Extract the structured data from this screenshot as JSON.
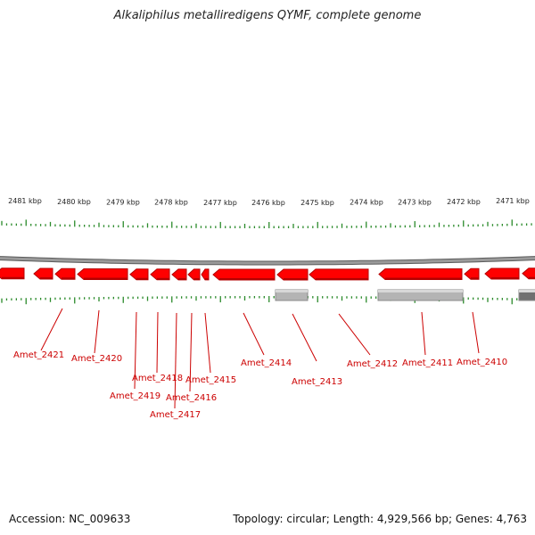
{
  "title": "Alkaliphilus metalliredigens QYMF, complete genome",
  "footer": {
    "accession": "Accession: NC_009633",
    "stats": "Topology: circular; Length: 4,929,566 bp; Genes: 4,763"
  },
  "colors": {
    "gene_forward": "#ff0000",
    "gene_reverse": "#ff0000",
    "gene_shadow": "#b40000",
    "gray_feature": "#b4b4b4",
    "dark_feature": "#707070",
    "backbone": "#808080",
    "tick": "#2a8a2a",
    "label": "#cc0000",
    "scale_text": "#222222"
  },
  "scale_labels": [
    "2481 kbp",
    "2480 kbp",
    "2479 kbp",
    "2478 kbp",
    "2477 kbp",
    "2476 kbp",
    "2475 kbp",
    "2474 kbp",
    "2473 kbp",
    "2472 kbp",
    "2471 kbp"
  ],
  "gene_labels": [
    "Amet_2421",
    "Amet_2420",
    "Amet_2419",
    "Amet_2418",
    "Amet_2417",
    "Amet_2416",
    "Amet_2415",
    "Amet_2414",
    "Amet_2413",
    "Amet_2412",
    "Amet_2411",
    "Amet_2410"
  ]
}
